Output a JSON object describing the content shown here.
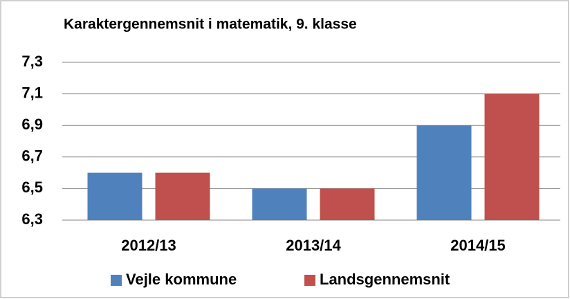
{
  "chart_data": {
    "type": "bar",
    "title": "Karaktergennemsnit i matematik, 9. klasse",
    "categories": [
      "2012/13",
      "2013/14",
      "2014/15"
    ],
    "series": [
      {
        "name": "Vejle kommune",
        "color": "#4f81bd",
        "values": [
          6.6,
          6.5,
          6.9
        ]
      },
      {
        "name": "Landsgennemsnit",
        "color": "#c0504d",
        "values": [
          6.6,
          6.5,
          7.1
        ]
      }
    ],
    "ylim": [
      6.3,
      7.3
    ],
    "yticks": [
      {
        "value": 6.3,
        "label": "6,3"
      },
      {
        "value": 6.5,
        "label": "6,5"
      },
      {
        "value": 6.7,
        "label": "6,7"
      },
      {
        "value": 6.9,
        "label": "6,9"
      },
      {
        "value": 7.1,
        "label": "7,1"
      },
      {
        "value": 7.3,
        "label": "7,3"
      }
    ],
    "grid": true
  }
}
